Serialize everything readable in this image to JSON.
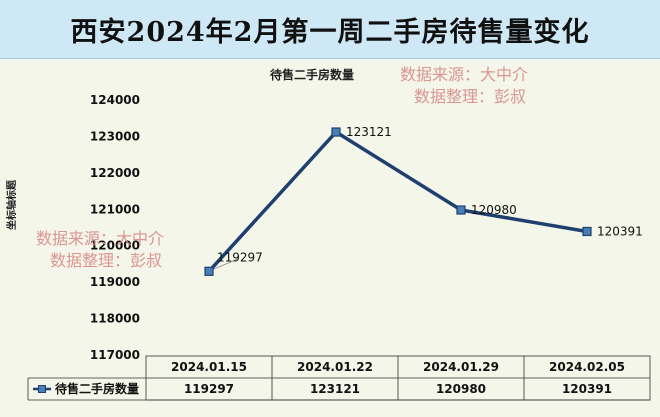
{
  "banner": {
    "title": "西安2024年2月第一周二手房待售量变化"
  },
  "watermark": {
    "line1": "数据来源：大中介",
    "line2": "数据整理：彭叔"
  },
  "chart_data": {
    "type": "line",
    "title": "待售二手房数量",
    "ylabel": "坐标轴标题",
    "xlabel": "",
    "categories": [
      "2024.01.15",
      "2024.01.22",
      "2024.01.29",
      "2024.02.05"
    ],
    "series": [
      {
        "name": "待售二手房数量",
        "values": [
          119297,
          123121,
          120980,
          120391
        ]
      }
    ],
    "ylim": [
      117000,
      124000
    ],
    "yticks": [
      117000,
      118000,
      119000,
      120000,
      121000,
      122000,
      123000,
      124000
    ],
    "data_table": true,
    "line_color": "#1f3f6f",
    "marker_color": "#4a7fb5",
    "watermark_color": "#d98b8b"
  }
}
